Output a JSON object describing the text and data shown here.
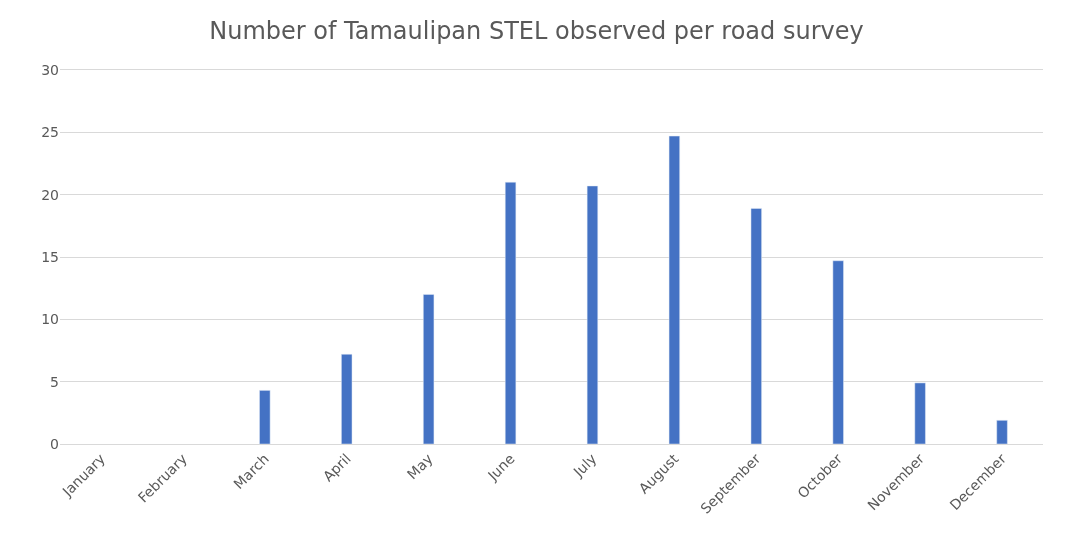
{
  "chart_data": {
    "type": "bar",
    "title": "Number of Tamaulipan STEL observed per road survey",
    "categories": [
      "January",
      "February",
      "March",
      "April",
      "May",
      "June",
      "July",
      "August",
      "September",
      "October",
      "November",
      "December"
    ],
    "values": [
      null,
      null,
      4.3,
      7.2,
      12.0,
      21.0,
      20.7,
      24.7,
      18.9,
      14.7,
      4.9,
      1.9
    ],
    "color": "#4472c4",
    "ylim": [
      0,
      30
    ],
    "yticks": [
      0,
      5,
      10,
      15,
      20,
      25,
      30
    ],
    "grid": "y"
  }
}
